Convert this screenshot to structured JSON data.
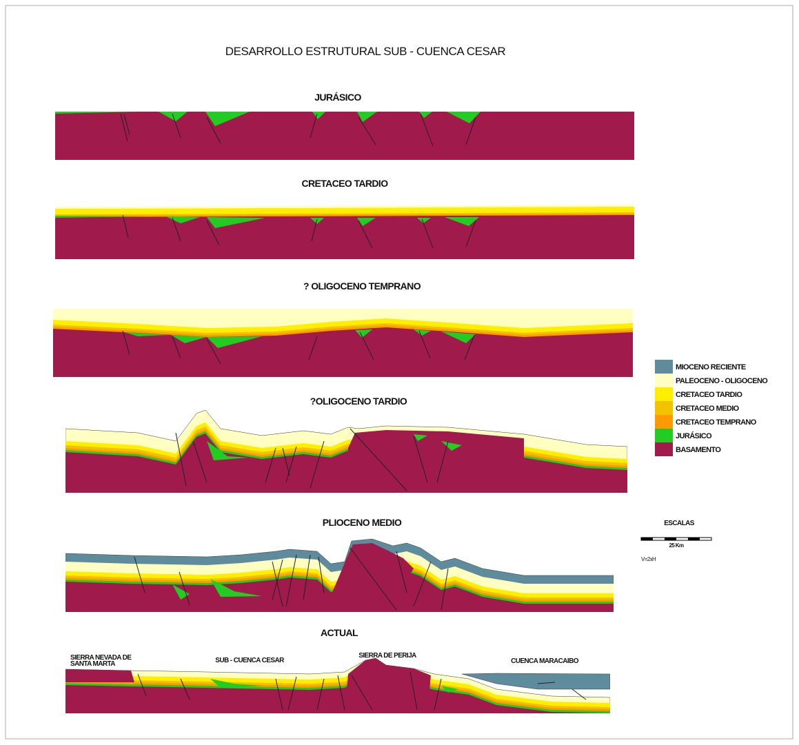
{
  "title": "DESARROLLO ESTRUTURAL SUB - CUENCA CESAR",
  "sections": [
    {
      "label": "JURÁSICO"
    },
    {
      "label": "CRETACEO TARDIO"
    },
    {
      "label": "? OLIGOCENO TEMPRANO"
    },
    {
      "label": "?OLIGOCENO TARDIO"
    },
    {
      "label": "PLIOCENO MEDIO"
    },
    {
      "label": "ACTUAL"
    }
  ],
  "legend": [
    {
      "label": "MIOCENO RECIENTE",
      "color": "#5f8c9c"
    },
    {
      "label": "PALEOCENO - OLIGOCENO",
      "color": "#ffffc2"
    },
    {
      "label": "CRETACEO TARDIO",
      "color": "#ffee00"
    },
    {
      "label": "CRETACEO MEDIO",
      "color": "#f2c200"
    },
    {
      "label": "CRETACEO TEMPRANO",
      "color": "#ff9a00"
    },
    {
      "label": "JURÁSICO",
      "color": "#22cc22"
    },
    {
      "label": "BASAMENTO",
      "color": "#a11a4c"
    }
  ],
  "scale": {
    "title": "ESCALAS",
    "bar_label": "25 Km",
    "ratio": "V=2xH"
  },
  "annotations": [
    {
      "lines": [
        "SIERRA NEVADA DE",
        "SANTA MARTA"
      ]
    },
    {
      "lines": [
        "SUB - CUENCA CESAR"
      ]
    },
    {
      "lines": [
        "SIERRA DE PERIJA"
      ]
    },
    {
      "lines": [
        "CUENCA MARACAIBO"
      ]
    }
  ]
}
